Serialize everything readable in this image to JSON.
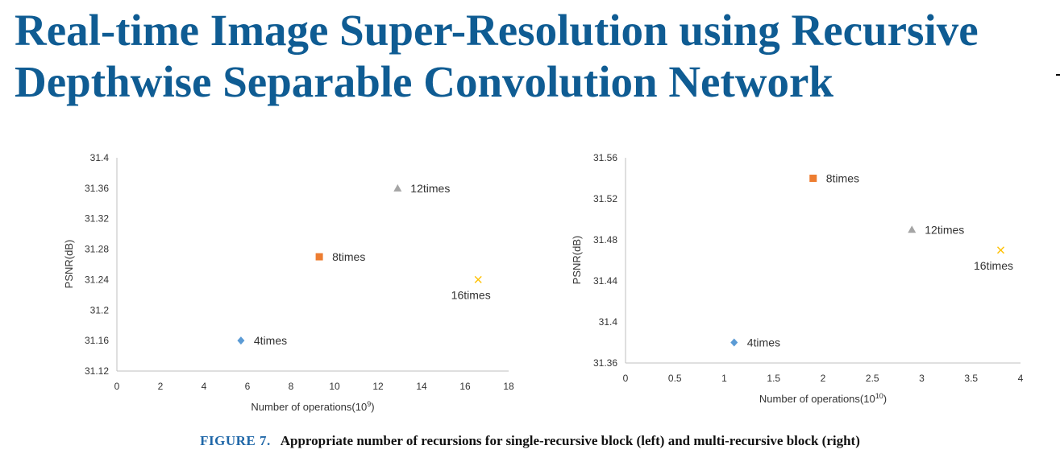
{
  "title": {
    "line1": "Real-time Image Super-Resolution using Recursive",
    "line2": "Depthwise Separable Convolution Network"
  },
  "caption": {
    "lead": "FIGURE   7.",
    "text": "Appropriate number of recursions for single-recursive block (left) and multi-recursive block (right)"
  },
  "colors": {
    "title": "#0f5c93",
    "diamond": "#5b9bd5",
    "square": "#ed7d31",
    "triangle": "#a5a5a5",
    "cross": "#ffc000"
  },
  "chart_data": [
    {
      "type": "scatter",
      "title": "",
      "xlabel": "Number of operations(10",
      "xlabel_sup": "9",
      "xlabel_close": ")",
      "ylabel": "PSNR(dB)",
      "xlim": [
        0,
        18
      ],
      "ylim": [
        31.12,
        31.4
      ],
      "xticks": [
        "0",
        "2",
        "4",
        "6",
        "8",
        "10",
        "12",
        "14",
        "16",
        "18"
      ],
      "yticks": [
        "31.12",
        "31.16",
        "31.2",
        "31.24",
        "31.28",
        "31.32",
        "31.36",
        "31.4"
      ],
      "grid": false,
      "points": [
        {
          "label": "4times",
          "x": 5.7,
          "y": 31.16,
          "marker": "diamond",
          "label_pos": "right"
        },
        {
          "label": "8times",
          "x": 9.3,
          "y": 31.27,
          "marker": "square",
          "label_pos": "right"
        },
        {
          "label": "12times",
          "x": 12.9,
          "y": 31.36,
          "marker": "triangle",
          "label_pos": "right"
        },
        {
          "label": "16times",
          "x": 16.6,
          "y": 31.24,
          "marker": "cross",
          "label_pos": "below"
        }
      ]
    },
    {
      "type": "scatter",
      "title": "",
      "xlabel": "Number of operations(10",
      "xlabel_sup": "10",
      "xlabel_close": ")",
      "ylabel": "PSNR(dB)",
      "xlim": [
        0,
        4
      ],
      "ylim": [
        31.36,
        31.56
      ],
      "xticks": [
        "0",
        "0.5",
        "1",
        "1.5",
        "2",
        "2.5",
        "3",
        "3.5",
        "4"
      ],
      "yticks": [
        "31.36",
        "31.4",
        "31.44",
        "31.48",
        "31.52",
        "31.56"
      ],
      "grid": false,
      "points": [
        {
          "label": "4times",
          "x": 1.1,
          "y": 31.38,
          "marker": "diamond",
          "label_pos": "right"
        },
        {
          "label": "8times",
          "x": 1.9,
          "y": 31.54,
          "marker": "square",
          "label_pos": "right"
        },
        {
          "label": "12times",
          "x": 2.9,
          "y": 31.49,
          "marker": "triangle",
          "label_pos": "right"
        },
        {
          "label": "16times",
          "x": 3.8,
          "y": 31.47,
          "marker": "cross",
          "label_pos": "below"
        }
      ]
    }
  ]
}
